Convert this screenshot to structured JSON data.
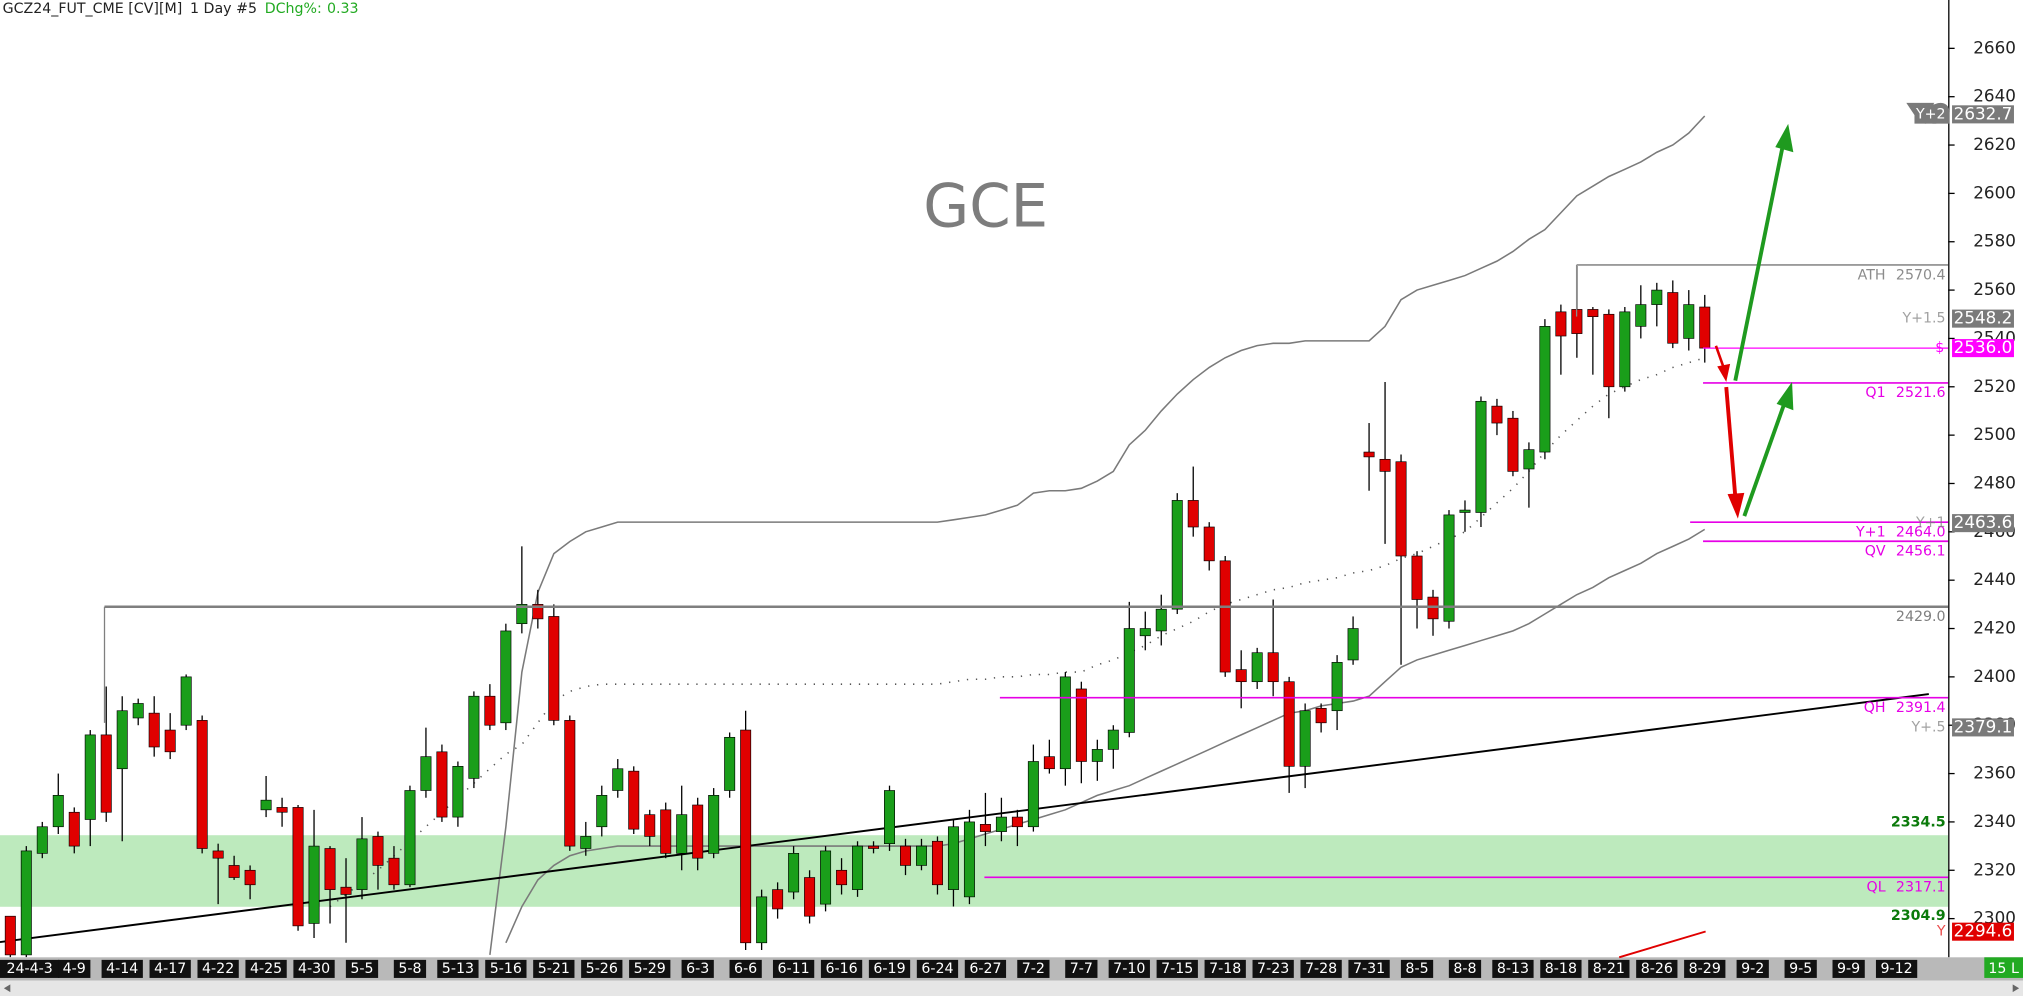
{
  "header": {
    "symbol": "GCZ24_FUT_CME [CV][M]",
    "interval": "1 Day #5",
    "change_label": "DChg%:",
    "change_value": 0.33
  },
  "footer_badge": "15 L",
  "chart_data": {
    "type": "candlestick",
    "annotation": "GCE",
    "categories": [
      "24-4-3",
      null,
      null,
      null,
      "4-9",
      null,
      null,
      "4-14",
      null,
      null,
      "4-17",
      null,
      null,
      "4-22",
      null,
      null,
      "4-25",
      null,
      null,
      "4-30",
      null,
      null,
      "5-5",
      null,
      null,
      "5-8",
      null,
      null,
      "5-13",
      null,
      null,
      "5-16",
      null,
      null,
      "5-21",
      null,
      null,
      "5-26",
      null,
      null,
      "5-29",
      null,
      null,
      "6-3",
      null,
      null,
      "6-6",
      null,
      null,
      "6-11",
      null,
      null,
      "6-16",
      null,
      null,
      "6-19",
      null,
      null,
      "6-24",
      null,
      null,
      "6-27",
      null,
      null,
      "7-2",
      null,
      null,
      "7-7",
      null,
      null,
      "7-10",
      null,
      null,
      "7-15",
      null,
      null,
      "7-18",
      null,
      null,
      "7-23",
      null,
      null,
      "7-28",
      null,
      null,
      "7-31",
      null,
      null,
      "8-5",
      null,
      null,
      "8-8",
      null,
      null,
      "8-13",
      null,
      null,
      "8-18",
      null,
      null,
      "8-21",
      null,
      null,
      "8-26",
      null,
      null,
      "8-29",
      null,
      null,
      "9-2",
      null,
      null,
      "9-5",
      null,
      null,
      "9-9",
      null,
      null,
      "9-12",
      null,
      null,
      null
    ],
    "open": [
      2301,
      2285,
      2327,
      2338,
      2344,
      2341,
      2376,
      2362,
      2383,
      2385,
      2378,
      2380,
      2382,
      2328,
      2322,
      2320,
      2345,
      2346,
      2346,
      2298,
      2329,
      2313,
      2312,
      2334,
      2325,
      2314,
      2353,
      2369,
      2342,
      2358,
      2392,
      2381,
      2422,
      2430,
      2425,
      2382,
      2329,
      2338,
      2353,
      2361,
      2343,
      2345,
      2327,
      2347,
      2327,
      2353,
      2378,
      2290,
      2312,
      2311,
      2317,
      2306,
      2320,
      2312,
      2330,
      2331,
      2330,
      2322,
      2332,
      2312,
      2309,
      2339,
      2336,
      2342,
      2338,
      2367,
      2362,
      2395,
      2365,
      2370,
      2377,
      2417,
      2419,
      2428,
      2473,
      2462,
      2448,
      2403,
      2398,
      2410,
      2398,
      2363,
      2387,
      2386,
      2407,
      2493,
      2490,
      2489,
      2450,
      2433,
      2423,
      2468,
      2468,
      2512,
      2507,
      2486,
      2493,
      2551,
      2552,
      2552,
      2550,
      2520,
      2545,
      2554,
      2559,
      2540,
      2553,
      null,
      null,
      null,
      null,
      null,
      null,
      null,
      null,
      null,
      null,
      null,
      null,
      null,
      null,
      null
    ],
    "high": [
      2301,
      2330,
      2340,
      2360,
      2346,
      2378,
      2396,
      2392,
      2391,
      2392,
      2385,
      2401,
      2384,
      2331,
      2326,
      2322,
      2359,
      2350,
      2347,
      2345,
      2330,
      2325,
      2342,
      2336,
      2330,
      2355,
      2379,
      2372,
      2365,
      2394,
      2397,
      2422,
      2454,
      2436,
      2430,
      2384,
      2340,
      2355,
      2366,
      2363,
      2345,
      2348,
      2355,
      2350,
      2354,
      2377,
      2386,
      2312,
      2315,
      2330,
      2320,
      2330,
      2325,
      2332,
      2332,
      2355,
      2333,
      2333,
      2334,
      2341,
      2345,
      2352,
      2350,
      2345,
      2372,
      2374,
      2402,
      2398,
      2374,
      2380,
      2431,
      2427,
      2434,
      2476,
      2487,
      2464,
      2450,
      2411,
      2412,
      2432,
      2400,
      2389,
      2389,
      2409,
      2425,
      2505,
      2522,
      2492,
      2452,
      2436,
      2469,
      2473,
      2516,
      2515,
      2510,
      2497,
      2548,
      2554,
      2570,
      2553,
      2552,
      2553,
      2562,
      2563,
      2564,
      2560,
      2558,
      null,
      null,
      null,
      null,
      null,
      null,
      null,
      null,
      null,
      null,
      null,
      null,
      null,
      null,
      null
    ],
    "low": [
      2284,
      2284,
      2325,
      2335,
      2327,
      2330,
      2340,
      2332,
      2380,
      2367,
      2366,
      2378,
      2327,
      2306,
      2316,
      2308,
      2342,
      2338,
      2295,
      2292,
      2298,
      2290,
      2308,
      2312,
      2312,
      2313,
      2350,
      2340,
      2338,
      2354,
      2378,
      2378,
      2418,
      2420,
      2380,
      2328,
      2326,
      2334,
      2350,
      2335,
      2330,
      2325,
      2320,
      2320,
      2325,
      2350,
      2287,
      2287,
      2300,
      2308,
      2298,
      2303,
      2310,
      2309,
      2327,
      2328,
      2318,
      2320,
      2310,
      2305,
      2306,
      2330,
      2332,
      2330,
      2336,
      2360,
      2355,
      2356,
      2357,
      2362,
      2375,
      2411,
      2413,
      2426,
      2458,
      2444,
      2400,
      2387,
      2395,
      2392,
      2352,
      2354,
      2377,
      2378,
      2405,
      2477,
      2455,
      2405,
      2420,
      2417,
      2420,
      2460,
      2462,
      2500,
      2483,
      2470,
      2490,
      2525,
      2532,
      2525,
      2507,
      2518,
      2540,
      2545,
      2536,
      2535,
      2530,
      null,
      null,
      null,
      null,
      null,
      null,
      null,
      null,
      null,
      null,
      null,
      null,
      null,
      null,
      null
    ],
    "close": [
      2285,
      2328,
      2338,
      2351,
      2330,
      2376,
      2344,
      2386,
      2389,
      2371,
      2369,
      2400,
      2329,
      2325,
      2317,
      2314,
      2349,
      2344,
      2297,
      2330,
      2312,
      2310,
      2333,
      2322,
      2314,
      2353,
      2367,
      2342,
      2363,
      2392,
      2380,
      2419,
      2430,
      2424,
      2382,
      2330,
      2334,
      2351,
      2362,
      2337,
      2334,
      2327,
      2343,
      2325,
      2351,
      2375,
      2290,
      2309,
      2304,
      2327,
      2301,
      2328,
      2314,
      2330,
      2329,
      2353,
      2322,
      2330,
      2314,
      2338,
      2340,
      2336,
      2342,
      2338,
      2365,
      2362,
      2400,
      2365,
      2370,
      2378,
      2420,
      2420,
      2428,
      2473,
      2462,
      2448,
      2402,
      2398,
      2410,
      2398,
      2363,
      2386,
      2381,
      2406,
      2420,
      2491,
      2485,
      2450,
      2432,
      2424,
      2467,
      2469,
      2514,
      2505,
      2485,
      2494,
      2545,
      2541,
      2542,
      2549,
      2520,
      2551,
      2554,
      2560,
      2538,
      2554,
      2536,
      null,
      null,
      null,
      null,
      null,
      null,
      null,
      null,
      null,
      null,
      null,
      null,
      null,
      null,
      null
    ],
    "up_color": "#1a9e1a",
    "down_color": "#e00000",
    "series": [
      {
        "color": "#7a7a7a",
        "dotted": false,
        "values": [
          null,
          null,
          null,
          null,
          null,
          null,
          null,
          null,
          null,
          null,
          null,
          null,
          null,
          null,
          null,
          null,
          null,
          null,
          null,
          null,
          null,
          null,
          null,
          null,
          null,
          null,
          null,
          null,
          null,
          null,
          2285,
          2338,
          2402,
          2435,
          2451,
          2456,
          2460,
          2462,
          2464,
          2464,
          2464,
          2464,
          2464,
          2464,
          2464,
          2464,
          2464,
          2464,
          2464,
          2464,
          2464,
          2464,
          2464,
          2464,
          2464,
          2464,
          2464,
          2464,
          2464,
          2465,
          2466,
          2467,
          2469,
          2471,
          2476,
          2477,
          2477,
          2478,
          2481,
          2485,
          2496,
          2502,
          2510,
          2517,
          2523,
          2528,
          2532,
          2535,
          2537,
          2538,
          2538,
          2539,
          2539,
          2539,
          2539,
          2539,
          2545,
          2556,
          2560,
          2562,
          2564,
          2566,
          2569,
          2572,
          2576,
          2581,
          2585,
          2592,
          2599,
          2603,
          2607,
          2610,
          2613,
          2617,
          2620,
          2625,
          2632,
          null,
          null,
          null,
          null,
          null,
          null,
          null,
          null,
          null,
          null,
          null,
          null,
          null,
          null,
          null
        ]
      },
      {
        "color": "#7a7a7a",
        "dotted": false,
        "values": [
          null,
          null,
          null,
          null,
          null,
          null,
          null,
          null,
          null,
          null,
          null,
          null,
          null,
          null,
          null,
          null,
          null,
          null,
          null,
          null,
          null,
          null,
          null,
          null,
          null,
          null,
          null,
          null,
          null,
          null,
          null,
          2290,
          2305,
          2316,
          2322,
          2326,
          2328,
          2329,
          2330,
          2330,
          2330,
          2330,
          2330,
          2330,
          2330,
          2330,
          2330,
          2330,
          2330,
          2330,
          2330,
          2330,
          2330,
          2330,
          2330,
          2330,
          2330,
          2330,
          2330,
          2331,
          2333,
          2335,
          2337,
          2339,
          2341,
          2343,
          2345,
          2348,
          2351,
          2353,
          2355,
          2358,
          2361,
          2364,
          2367,
          2370,
          2373,
          2376,
          2379,
          2382,
          2385,
          2386,
          2388,
          2389,
          2390,
          2392,
          2398,
          2404,
          2407,
          2409,
          2411,
          2413,
          2415,
          2417,
          2419,
          2422,
          2426,
          2430,
          2434,
          2437,
          2441,
          2444,
          2447,
          2451,
          2454,
          2457,
          2461,
          null,
          null,
          null,
          null,
          null,
          null,
          null,
          null,
          null,
          null,
          null,
          null,
          null,
          null,
          null
        ]
      },
      {
        "color": "#555555",
        "dotted": true,
        "values": [
          null,
          null,
          null,
          null,
          null,
          null,
          null,
          null,
          null,
          null,
          null,
          null,
          null,
          null,
          null,
          null,
          null,
          null,
          null,
          null,
          2305,
          2310,
          2315,
          2320,
          2326,
          2332,
          2338,
          2344,
          2350,
          2356,
          2362,
          2368,
          2372,
          2381,
          2390,
          2394,
          2396,
          2397,
          2397,
          2397,
          2397,
          2397,
          2397,
          2397,
          2397,
          2397,
          2397,
          2397,
          2397,
          2397,
          2397,
          2397,
          2397,
          2397,
          2397,
          2397,
          2397,
          2397,
          2397,
          2398,
          2399,
          2399,
          2400,
          2400,
          2401,
          2401,
          2402,
          2402,
          2405,
          2407,
          2410,
          2413,
          2417,
          2420,
          2423,
          2427,
          2430,
          2432,
          2434,
          2436,
          2437,
          2439,
          2440,
          2441,
          2443,
          2444,
          2446,
          2449,
          2451,
          2454,
          2457,
          2460,
          2466,
          2472,
          2478,
          2485,
          2493,
          2500,
          2506,
          2512,
          2517,
          2520,
          2523,
          2525,
          2528,
          2530,
          2532,
          null,
          null,
          null,
          null,
          null,
          null,
          null,
          null,
          null,
          null,
          null,
          null,
          null,
          null,
          null
        ]
      }
    ],
    "trendline": {
      "values": [
        2290.3,
        2392.9
      ],
      "color": "#000000"
    },
    "zone": {
      "low": 2304.9,
      "high": 2334.5,
      "color": "#bdeabd",
      "label_color": "#0b7a0b"
    },
    "levels": [
      {
        "name": "ATH",
        "value": 2570.4,
        "color": "#8c8c8c"
      },
      {
        "name": "Q1",
        "value": 2521.6,
        "color": "#e600e6"
      },
      {
        "name": "Y+1",
        "value": 2464,
        "value_label": "2464.0",
        "color": "#e600e6"
      },
      {
        "name": "QV",
        "value": 2456.1,
        "color": "#e600e6"
      },
      {
        "value": 2429,
        "value_label": "2429.0",
        "color": "#7f7f7f"
      },
      {
        "name": "QH",
        "value": 2391.4,
        "color": "#e600e6"
      },
      {
        "name": "QL",
        "value": 2317.1,
        "color": "#e600e6"
      }
    ],
    "price_line": {
      "name": "$",
      "value": 2536,
      "value_label": "2536.0",
      "color": "#ff00ff"
    },
    "tags": [
      {
        "name": "Y+2",
        "value": 2632.7,
        "color": "#7a7a7a"
      },
      {
        "name": "Y+1.5",
        "value": 2548.2,
        "color": "#7a7a7a"
      },
      {
        "name": "Y+1",
        "value": 2463.6,
        "color": "#7a7a7a"
      },
      {
        "name": "Y+.5",
        "value": 2379.1,
        "color": "#7a7a7a"
      },
      {
        "name": "Y",
        "value": 2294.6,
        "color": "#e00000"
      }
    ],
    "ylim": [
      2284,
      2680
    ],
    "yticks": [
      2300,
      2320,
      2340,
      2360,
      2380,
      2400,
      2420,
      2440,
      2460,
      2480,
      2500,
      2520,
      2540,
      2560,
      2580,
      2600,
      2620,
      2640,
      2660
    ]
  }
}
